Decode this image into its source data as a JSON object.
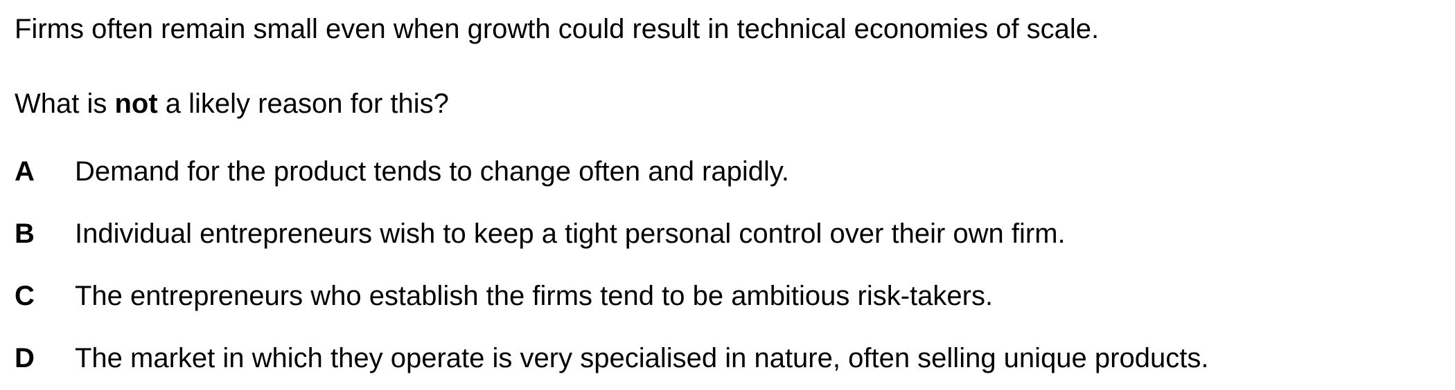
{
  "question": {
    "stem": "Firms often remain small even when growth could result in technical economies of scale.",
    "prompt": {
      "before": "What is ",
      "emphasis": "not",
      "after": " a likely reason for this?"
    },
    "options": [
      {
        "letter": "A",
        "text": "Demand for the product tends to change often and rapidly."
      },
      {
        "letter": "B",
        "text": "Individual entrepreneurs wish to keep a tight personal control over their own firm."
      },
      {
        "letter": "C",
        "text": "The entrepreneurs who establish the firms tend to be ambitious risk-takers."
      },
      {
        "letter": "D",
        "text": "The market in which they operate is very specialised in nature, often selling unique products."
      }
    ]
  }
}
